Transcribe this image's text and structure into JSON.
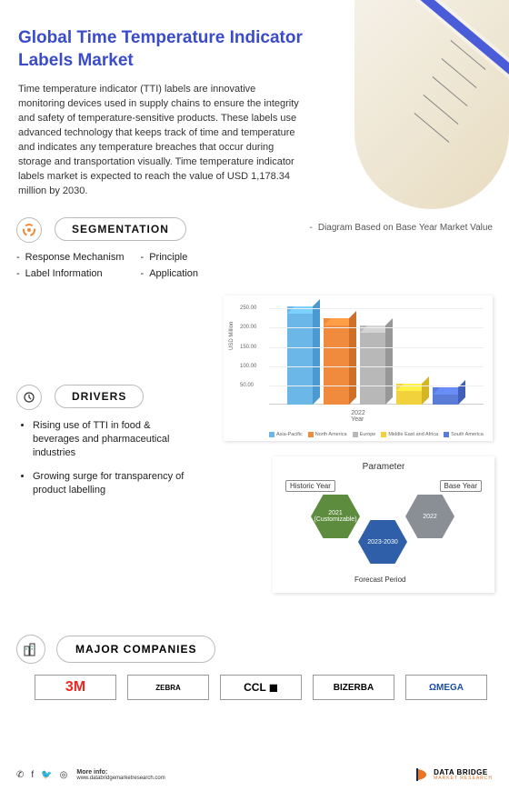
{
  "heading": "Global Time Temperature Indicator Labels Market",
  "intro": "Time temperature indicator (TTI) labels are innovative monitoring devices used in supply chains to ensure the integrity and safety of temperature-sensitive products. These labels use advanced technology that keeps track of time and temperature and indicates any temperature breaches that occur during storage and transportation visually. Time temperature indicator labels market is expected to reach the value of USD 1,178.34 million by 2030.",
  "segmentation": {
    "title": "SEGMENTATION",
    "left_items": [
      "Response Mechanism",
      "Label Information"
    ],
    "right_items": [
      "Principle",
      "Application"
    ]
  },
  "chart_note": "Diagram Based on Base Year Market Value",
  "bar_chart": {
    "y_label": "USD Million",
    "x_label": "Year",
    "x_tick": "2022",
    "ymax": 260,
    "yticks": [
      50,
      100,
      150,
      200,
      250
    ],
    "series": [
      {
        "name": "Asia-Pacific",
        "value": 255,
        "color": "#6bb7e8",
        "shade": "#4a9ad1"
      },
      {
        "name": "North America",
        "value": 225,
        "color": "#f08a3c",
        "shade": "#cf6f28"
      },
      {
        "name": "Europe",
        "value": 205,
        "color": "#b8b8b8",
        "shade": "#979797"
      },
      {
        "name": "Middle East and Africa",
        "value": 55,
        "color": "#f2d23c",
        "shade": "#d4b524"
      },
      {
        "name": "South America",
        "value": 45,
        "color": "#5a7bd6",
        "shade": "#3f5fb8"
      }
    ]
  },
  "drivers": {
    "title": "DRIVERS",
    "items": [
      "Rising use of TTI in food & beverages and pharmaceutical industries",
      "Growing surge for transparency of product labelling"
    ]
  },
  "parameter": {
    "title": "Parameter",
    "historic_label": "Historic Year",
    "base_label": "Base Year",
    "forecast_label": "Forecast Period",
    "hex_historic": "2021 (Customizable)",
    "hex_base": "2022",
    "hex_forecast": "2023-2030",
    "colors": {
      "historic": "#5e8c3e",
      "base": "#8a8f96",
      "forecast": "#2f5fa8"
    }
  },
  "major": {
    "title": "MAJOR COMPANIES",
    "logos": [
      {
        "text": "3M",
        "color": "#ee2722",
        "weight": "900",
        "size": "16px"
      },
      {
        "text": "ZEBRA",
        "color": "#000000",
        "weight": "700",
        "size": "8px"
      },
      {
        "text": "CCL ◼",
        "color": "#000000",
        "weight": "800",
        "size": "12px"
      },
      {
        "text": "BIZERBA",
        "color": "#000000",
        "weight": "800",
        "size": "10px"
      },
      {
        "text": "ΩMEGA",
        "color": "#1a4fa3",
        "weight": "800",
        "size": "10px"
      }
    ]
  },
  "footer": {
    "more_info_label": "More info:",
    "more_info_url": "www.databridgemarketresearch.com",
    "brand_top": "DATA BRIDGE",
    "brand_bottom": "MARKET RESEARCH",
    "brand_color": "#e87424"
  }
}
